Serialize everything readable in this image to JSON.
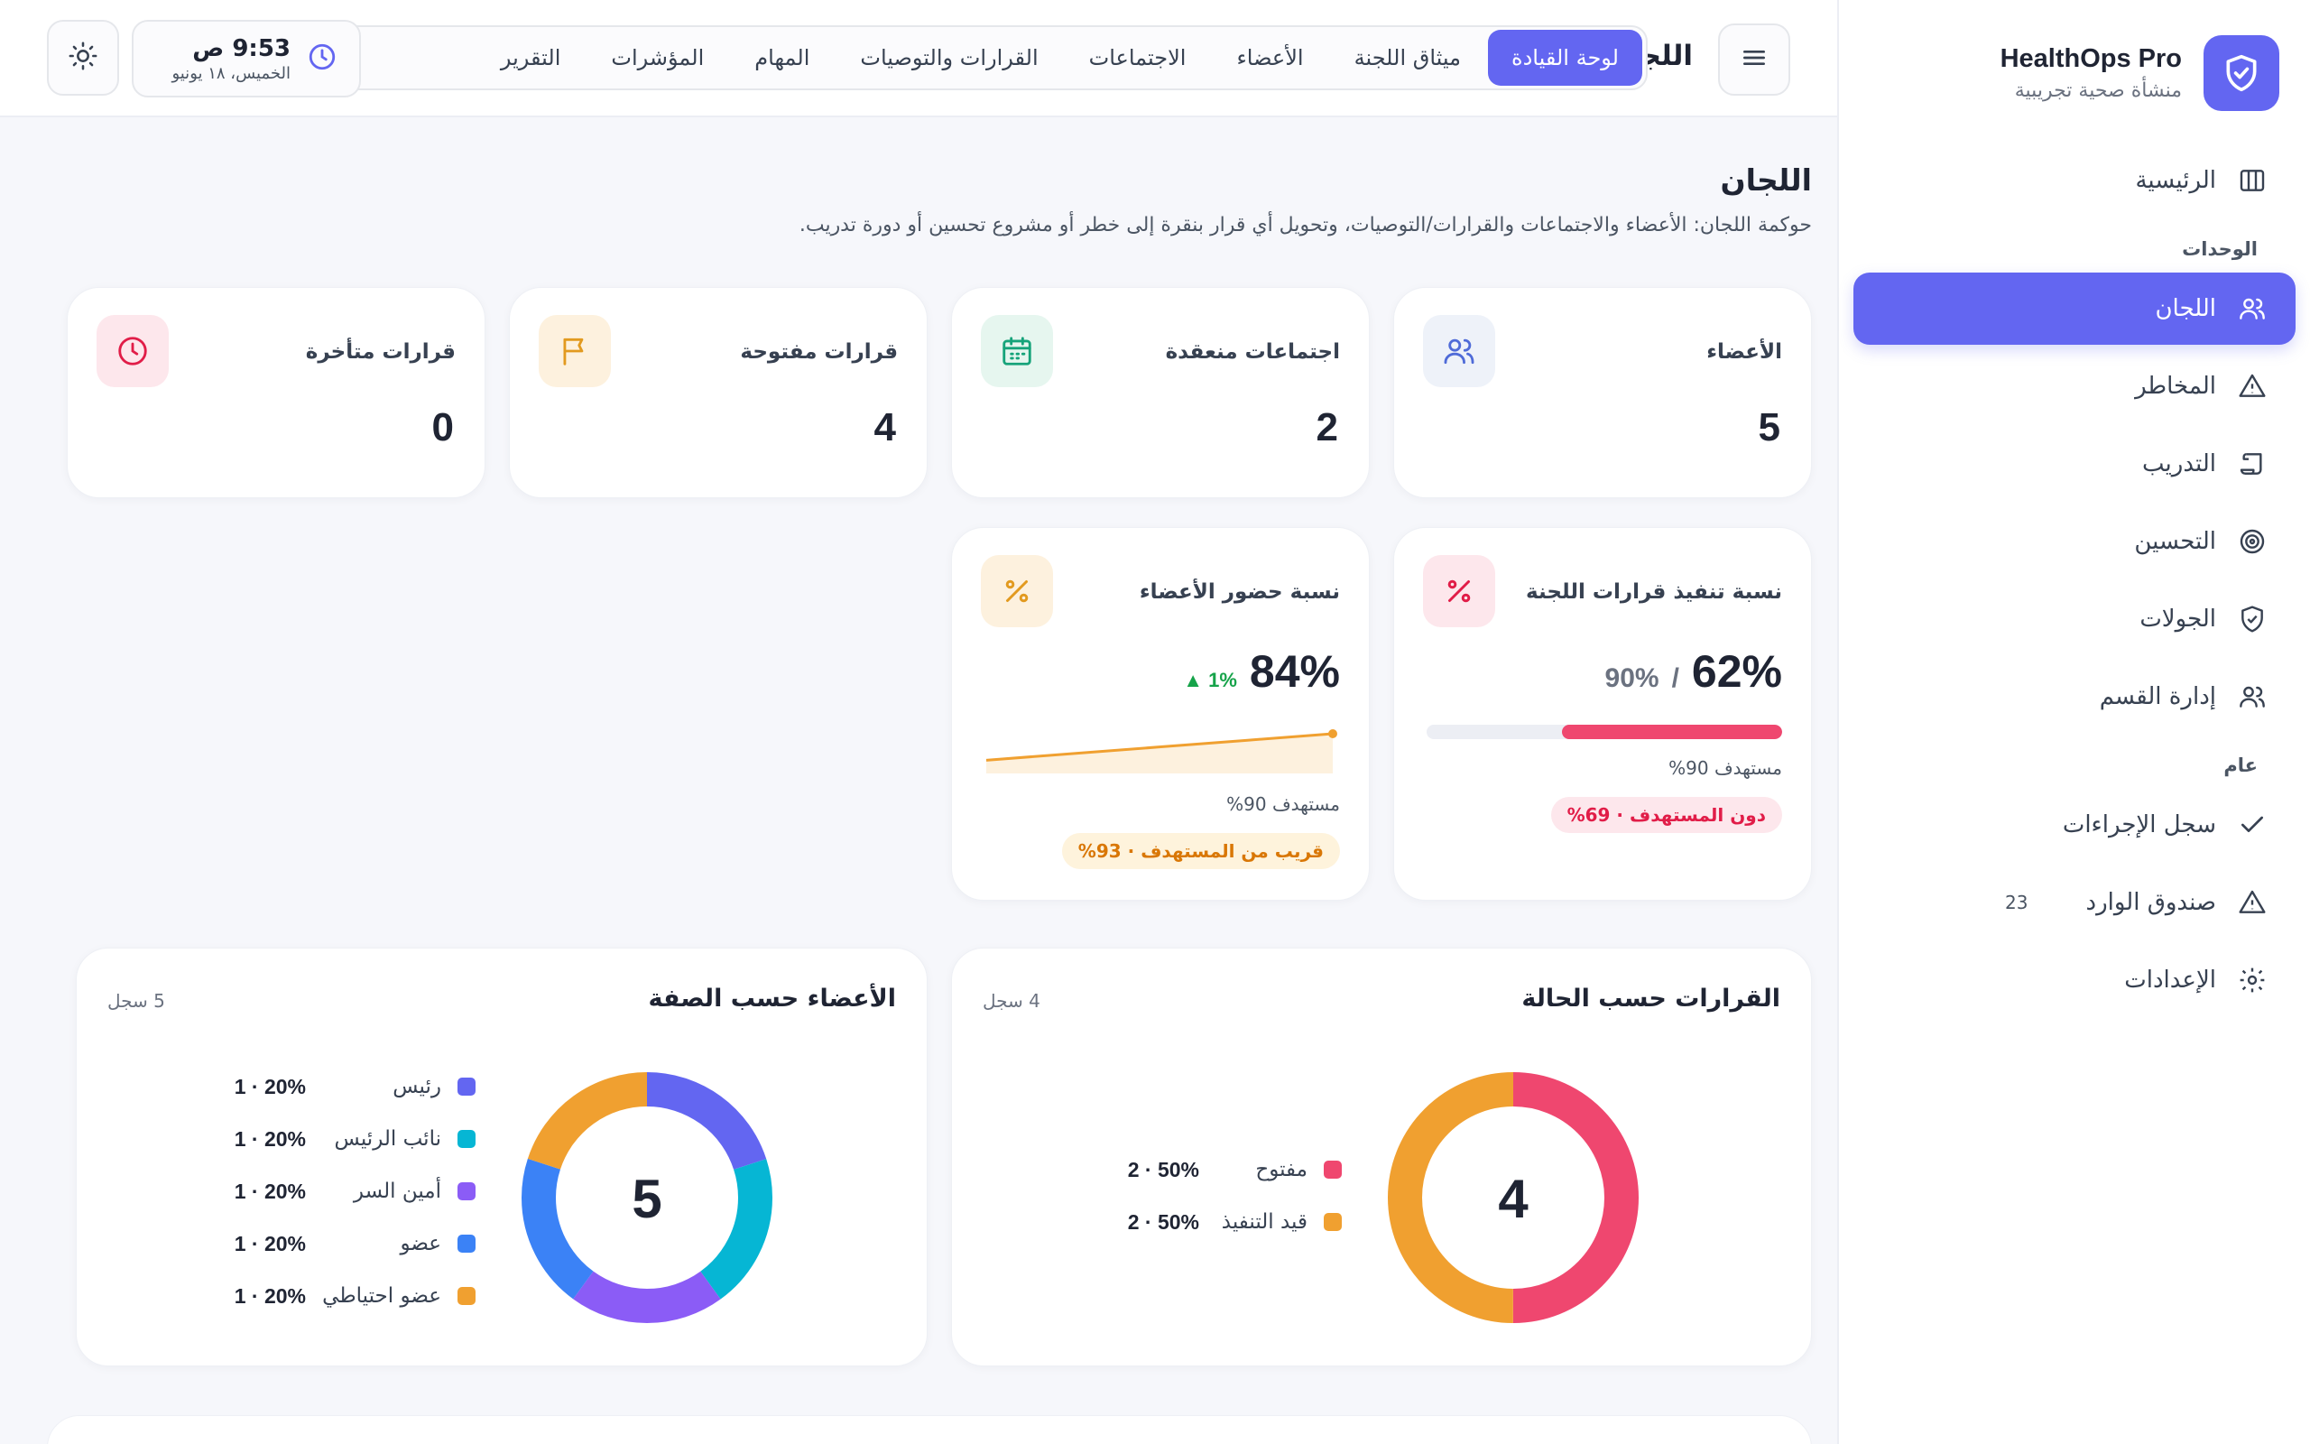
{
  "brand": {
    "title": "HealthOps Pro",
    "subtitle": "منشأة صحية تجريبية"
  },
  "sidebar": {
    "home": "الرئيسية",
    "section_units": "الوحدات",
    "units": [
      {
        "label": "اللجان",
        "icon": "users-icon"
      },
      {
        "label": "المخاطر",
        "icon": "warning-icon"
      },
      {
        "label": "التدريب",
        "icon": "scroll-icon"
      },
      {
        "label": "التحسين",
        "icon": "target-icon"
      },
      {
        "label": "الجولات",
        "icon": "shield-check-icon"
      },
      {
        "label": "إدارة القسم",
        "icon": "users-icon"
      }
    ],
    "section_general": "عام",
    "general": [
      {
        "label": "سجل الإجراءات",
        "icon": "check-icon"
      },
      {
        "label": "صندوق الوارد",
        "icon": "warning-icon",
        "badge": "23"
      },
      {
        "label": "الإعدادات",
        "icon": "gear-icon"
      }
    ]
  },
  "topbar": {
    "title": "اللجان",
    "tabs": [
      "لوحة القيادة",
      "ميثاق اللجنة",
      "الأعضاء",
      "الاجتماعات",
      "القرارات والتوصيات",
      "المهام",
      "المؤشرات",
      "التقرير"
    ],
    "clock_time": "9:53 ص",
    "clock_date": "الخميس، ١٨ يونيو"
  },
  "page": {
    "title": "اللجان",
    "description": "حوكمة اللجان: الأعضاء والاجتماعات والقرارات/التوصيات، وتحويل أي قرار بنقرة إلى خطر أو مشروع تحسين أو دورة تدريب."
  },
  "kpis": [
    {
      "label": "الأعضاء",
      "value": "5",
      "icon": "users-icon"
    },
    {
      "label": "اجتماعات منعقدة",
      "value": "2",
      "icon": "calendar-icon"
    },
    {
      "label": "قرارات مفتوحة",
      "value": "4",
      "icon": "flag-icon"
    },
    {
      "label": "قرارات متأخرة",
      "value": "0",
      "icon": "clock-icon"
    }
  ],
  "metrics": {
    "execution": {
      "label": "نسبة تنفيذ قرارات اللجنة",
      "value": "62%",
      "target": "90%",
      "progress": 0.62,
      "target_text": "مستهدف 90%",
      "status": "دون المستهدف · 69%",
      "icon": "percent-icon"
    },
    "attendance": {
      "label": "نسبة حضور الأعضاء",
      "value": "84%",
      "trend": "▲ 1%",
      "target_text": "مستهدف 90%",
      "status": "قريب من المستهدف · 93%",
      "icon": "percent-icon"
    }
  },
  "decisions_chart": {
    "title": "القرارات حسب الحالة",
    "count": "4 سجل",
    "total": "4",
    "items": [
      {
        "label": "مفتوح",
        "value": "2 · 50%",
        "count": 2,
        "color": "#ef476f"
      },
      {
        "label": "قيد التنفيذ",
        "value": "2 · 50%",
        "count": 2,
        "color": "#f0a030"
      }
    ]
  },
  "members_chart": {
    "title": "الأعضاء حسب الصفة",
    "count": "5 سجل",
    "total": "5",
    "items": [
      {
        "label": "رئيس",
        "value": "1 · 20%",
        "count": 1,
        "color": "#6366f1"
      },
      {
        "label": "نائب الرئيس",
        "value": "1 · 20%",
        "count": 1,
        "color": "#06b6d4"
      },
      {
        "label": "أمين السر",
        "value": "1 · 20%",
        "count": 1,
        "color": "#8b5cf6"
      },
      {
        "label": "عضو",
        "value": "1 · 20%",
        "count": 1,
        "color": "#3b82f6"
      },
      {
        "label": "عضو احتياطي",
        "value": "1 · 20%",
        "count": 1,
        "color": "#f0a030"
      }
    ]
  },
  "chart_data": {
    "type": "line",
    "title": "نسبة حضور الأعضاء",
    "x": [
      1,
      2,
      3,
      4,
      5
    ],
    "series": [
      {
        "values": [
          80,
          81,
          82,
          83,
          84
        ]
      }
    ]
  }
}
